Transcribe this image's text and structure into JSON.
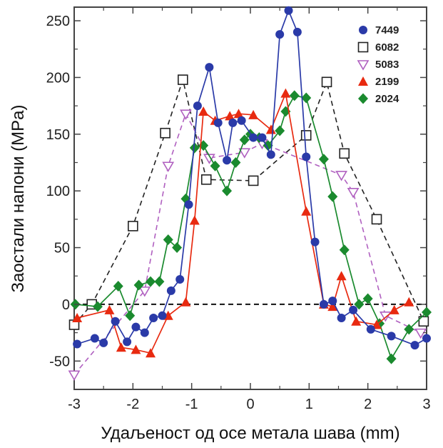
{
  "chart_data": {
    "type": "line",
    "xlabel": "Удаљеност од осе метала шава (mm)",
    "ylabel": "Заостали напони  (MPa)",
    "xlim": [
      -3,
      3
    ],
    "ylim": [
      -75,
      262
    ],
    "xticks": [
      -3,
      -2,
      -1,
      0,
      1,
      2,
      3
    ],
    "yticks": [
      -50,
      0,
      50,
      100,
      150,
      200,
      250
    ],
    "zero_line": 0,
    "legend_position": "top-right",
    "series": [
      {
        "name": "7449",
        "color": "#2a3aa8",
        "marker": "circle",
        "line": "solid",
        "x": [
          -2.95,
          -2.65,
          -2.5,
          -2.3,
          -2.1,
          -1.95,
          -1.8,
          -1.65,
          -1.5,
          -1.35,
          -1.2,
          -1.05,
          -0.9,
          -0.7,
          -0.55,
          -0.4,
          -0.3,
          -0.15,
          0.05,
          0.2,
          0.35,
          0.5,
          0.65,
          0.8,
          0.95,
          1.1,
          1.25,
          1.4,
          1.55,
          1.75,
          2.05,
          2.4,
          2.8,
          3.0
        ],
        "y": [
          -35,
          -30,
          -34,
          -15,
          -33,
          -20,
          -25,
          -12,
          -10,
          12,
          22,
          88,
          175,
          209,
          160,
          127,
          160,
          162,
          147,
          147,
          132,
          238,
          259,
          240,
          130,
          55,
          0,
          3,
          -12,
          -5,
          -22,
          -28,
          -36,
          -30
        ]
      },
      {
        "name": "6082",
        "color": "#222222",
        "marker": "square-open",
        "line": "dashed",
        "x": [
          -3.0,
          -2.7,
          -2.0,
          -1.45,
          -1.15,
          -0.75,
          0.05,
          0.95,
          1.3,
          1.6,
          2.15,
          2.95
        ],
        "y": [
          -18,
          0,
          69,
          151,
          198,
          110,
          109,
          149,
          196,
          133,
          75,
          -15
        ]
      },
      {
        "name": "5083",
        "color": "#b060c0",
        "marker": "triangle-down-open",
        "line": "dashed",
        "x": [
          -3.0,
          -1.8,
          -1.4,
          -1.1,
          -0.7,
          -0.1,
          0.2,
          1.55,
          1.75,
          2.3,
          2.9
        ],
        "y": [
          -62,
          12,
          122,
          168,
          129,
          134,
          142,
          114,
          99,
          -10,
          -25
        ]
      },
      {
        "name": "2199",
        "color": "#e82a10",
        "marker": "triangle-up",
        "line": "solid",
        "x": [
          -2.95,
          -2.4,
          -2.2,
          -1.95,
          -1.7,
          -1.4,
          -1.1,
          -0.95,
          -0.8,
          -0.6,
          -0.35,
          -0.2,
          0.05,
          0.35,
          0.6,
          0.95,
          1.25,
          1.4,
          1.55,
          1.8,
          2.15,
          2.45,
          2.7
        ],
        "y": [
          -12,
          -5,
          -38,
          -40,
          -43,
          -10,
          2,
          74,
          170,
          162,
          166,
          168,
          167,
          154,
          186,
          82,
          0,
          -2,
          25,
          -15,
          -18,
          -5,
          2
        ]
      },
      {
        "name": "2024",
        "color": "#1a8a2e",
        "marker": "diamond",
        "line": "solid",
        "x": [
          -2.98,
          -2.6,
          -2.25,
          -2.05,
          -1.9,
          -1.7,
          -1.55,
          -1.4,
          -1.25,
          -1.1,
          -0.95,
          -0.8,
          -0.6,
          -0.4,
          -0.25,
          -0.1,
          0.0,
          0.15,
          0.3,
          0.5,
          0.6,
          0.75,
          0.95,
          1.25,
          1.4,
          1.6,
          1.85,
          2.0,
          2.2,
          2.4,
          2.7,
          3.0
        ],
        "y": [
          0,
          -2,
          16,
          -10,
          17,
          20,
          20,
          57,
          50,
          93,
          138,
          140,
          122,
          100,
          125,
          145,
          150,
          147,
          140,
          153,
          170,
          184,
          182,
          128,
          95,
          48,
          0,
          5,
          -17,
          -48,
          -22,
          -7
        ]
      }
    ]
  }
}
